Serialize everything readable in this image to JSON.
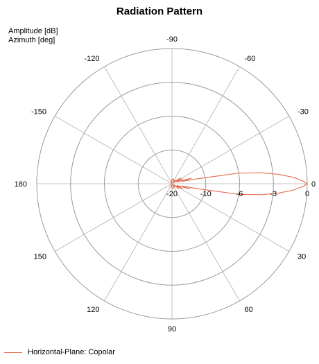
{
  "chart_data": {
    "type": "polar-line",
    "title": "Radiation Pattern",
    "radial_axis_label": "Amplitude [dB]",
    "angular_axis_label": "Azimuth [deg]",
    "radial_range": [
      -20,
      0
    ],
    "radial_ticks": [
      -20,
      -10,
      -6,
      -3,
      0
    ],
    "radial_tick_labels": [
      "-20",
      "-10",
      "-6",
      "-3",
      "0"
    ],
    "angular_ticks": [
      0,
      30,
      60,
      90,
      120,
      150,
      180,
      -150,
      -120,
      -90,
      -60,
      -30
    ],
    "angular_tick_labels": [
      "0",
      "30",
      "60",
      "90",
      "120",
      "150",
      "180",
      "-150",
      "-120",
      "-90",
      "-60",
      "-30"
    ],
    "grid": true,
    "legend_position": "bottom-left",
    "series": [
      {
        "name": "Horizontal-Plane: Copolar",
        "color": "#e8735a",
        "points": [
          {
            "az": -180,
            "amp": -20
          },
          {
            "az": -140,
            "amp": -20
          },
          {
            "az": -100,
            "amp": -19
          },
          {
            "az": -80,
            "amp": -18.5
          },
          {
            "az": -70,
            "amp": -18.7
          },
          {
            "az": -60,
            "amp": -19.2
          },
          {
            "az": -50,
            "amp": -18.5
          },
          {
            "az": -42,
            "amp": -19.5
          },
          {
            "az": -35,
            "amp": -17
          },
          {
            "az": -30,
            "amp": -18.8
          },
          {
            "az": -25,
            "amp": -16.5
          },
          {
            "az": -20,
            "amp": -18.5
          },
          {
            "az": -16,
            "amp": -14
          },
          {
            "az": -13,
            "amp": -17
          },
          {
            "az": -11,
            "amp": -12
          },
          {
            "az": -9,
            "amp": -6
          },
          {
            "az": -7,
            "amp": -4
          },
          {
            "az": -5,
            "amp": -2.5
          },
          {
            "az": -3,
            "amp": -1.2
          },
          {
            "az": -1,
            "amp": -0.3
          },
          {
            "az": 0,
            "amp": 0
          },
          {
            "az": 1,
            "amp": -0.3
          },
          {
            "az": 3,
            "amp": -1.2
          },
          {
            "az": 5,
            "amp": -2.5
          },
          {
            "az": 7,
            "amp": -4
          },
          {
            "az": 9,
            "amp": -6
          },
          {
            "az": 11,
            "amp": -12
          },
          {
            "az": 13,
            "amp": -17
          },
          {
            "az": 16,
            "amp": -14.5
          },
          {
            "az": 20,
            "amp": -18.5
          },
          {
            "az": 25,
            "amp": -16.5
          },
          {
            "az": 30,
            "amp": -18.8
          },
          {
            "az": 35,
            "amp": -17.5
          },
          {
            "az": 42,
            "amp": -19.5
          },
          {
            "az": 50,
            "amp": -18.8
          },
          {
            "az": 60,
            "amp": -19.3
          },
          {
            "az": 70,
            "amp": -18.7
          },
          {
            "az": 80,
            "amp": -18.6
          },
          {
            "az": 100,
            "amp": -19
          },
          {
            "az": 140,
            "amp": -20
          },
          {
            "az": 180,
            "amp": -20
          }
        ]
      }
    ]
  }
}
